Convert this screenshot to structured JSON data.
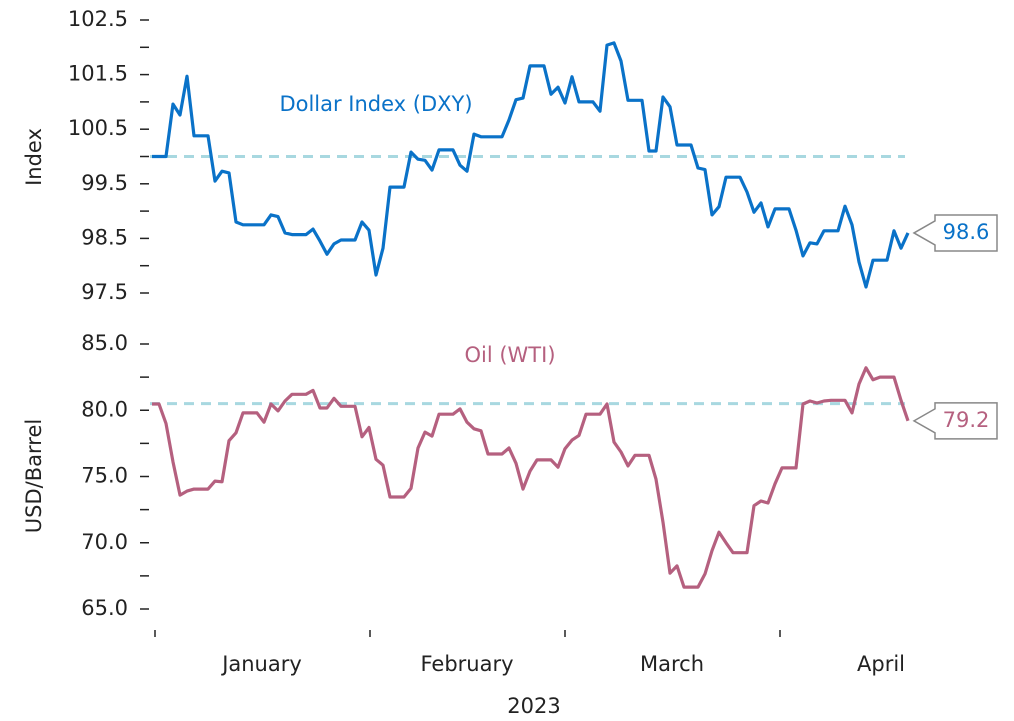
{
  "chart_data": [
    {
      "type": "line",
      "ylabel": "Index",
      "ylim": [
        97.5,
        102.5
      ],
      "yticks": [
        97.5,
        98.5,
        99.5,
        100.5,
        101.5,
        102.5
      ],
      "minor_yticks": [
        98.0,
        99.0,
        100.0,
        101.0,
        102.0
      ],
      "reference_line": 100.0,
      "end_label": "98.6",
      "series": [
        {
          "name": "Dollar Index (DXY)",
          "color": "#0a72c8",
          "values": [
            100.0,
            100.0,
            100.0,
            100.96,
            100.76,
            101.47,
            100.38,
            100.38,
            100.38,
            99.55,
            99.73,
            99.7,
            98.8,
            98.75,
            98.75,
            98.75,
            98.75,
            98.93,
            98.9,
            98.6,
            98.57,
            98.57,
            98.57,
            98.67,
            98.45,
            98.21,
            98.4,
            98.47,
            98.47,
            98.47,
            98.8,
            98.65,
            97.83,
            98.32,
            99.44,
            99.44,
            99.44,
            100.08,
            99.95,
            99.93,
            99.75,
            100.12,
            100.12,
            100.12,
            99.84,
            99.73,
            100.41,
            100.36,
            100.36,
            100.36,
            100.36,
            100.67,
            101.04,
            101.07,
            101.66,
            101.66,
            101.66,
            101.14,
            101.27,
            100.98,
            101.46,
            101.0,
            101.0,
            101.0,
            100.83,
            102.04,
            102.08,
            101.75,
            101.03,
            101.03,
            101.03,
            100.1,
            100.1,
            101.09,
            100.91,
            100.21,
            100.21,
            100.21,
            99.79,
            99.76,
            98.93,
            99.08,
            99.62,
            99.62,
            99.62,
            99.35,
            98.98,
            99.15,
            98.71,
            99.04,
            99.04,
            99.04,
            98.65,
            98.18,
            98.42,
            98.4,
            98.64,
            98.64,
            98.64,
            99.09,
            98.75,
            98.07,
            97.61,
            98.1,
            98.1,
            98.1,
            98.64,
            98.32,
            98.6
          ]
        }
      ]
    },
    {
      "type": "line",
      "ylabel": "USD/Barrel",
      "ylim": [
        65,
        85
      ],
      "yticks": [
        {
          "value": 65,
          "label": "65.0"
        },
        {
          "value": 70,
          "label": "70.0"
        },
        {
          "value": 75,
          "label": "75.0"
        },
        {
          "value": 80,
          "label": "80.0"
        },
        {
          "value": 85,
          "label": "85.0"
        }
      ],
      "minor_yticks": [
        67.5,
        72.5,
        77.5,
        82.5
      ],
      "reference_line": 80.5,
      "end_label": "79.2",
      "x_axis_labels": [
        "January",
        "February",
        "March",
        "April"
      ],
      "xlabel": "2023",
      "series": [
        {
          "name": "Oil (WTI)",
          "color": "#b5607f",
          "values": [
            80.47,
            80.47,
            79.0,
            76.1,
            73.6,
            73.9,
            74.05,
            74.05,
            74.05,
            74.65,
            74.6,
            77.7,
            78.3,
            79.8,
            79.8,
            79.8,
            79.1,
            80.47,
            79.95,
            80.7,
            81.2,
            81.2,
            81.2,
            81.5,
            80.17,
            80.17,
            80.9,
            80.3,
            80.3,
            80.3,
            78.0,
            78.7,
            76.3,
            75.85,
            73.45,
            73.45,
            73.45,
            74.1,
            77.15,
            78.35,
            78.05,
            79.7,
            79.7,
            79.7,
            80.1,
            79.1,
            78.6,
            78.45,
            76.7,
            76.7,
            76.7,
            77.15,
            76.0,
            74.05,
            75.4,
            76.25,
            76.25,
            76.25,
            75.7,
            77.1,
            77.75,
            78.1,
            79.7,
            79.7,
            79.7,
            80.47,
            77.6,
            76.85,
            75.8,
            76.6,
            76.6,
            76.6,
            74.8,
            71.55,
            67.7,
            68.25,
            66.65,
            66.65,
            66.65,
            67.65,
            69.4,
            70.8,
            70.0,
            69.25,
            69.25,
            69.25,
            72.8,
            73.15,
            73.0,
            74.45,
            75.65,
            75.65,
            75.65,
            80.47,
            80.7,
            80.55,
            80.7,
            80.75,
            80.75,
            80.75,
            79.8,
            81.98,
            83.2,
            82.3,
            82.5,
            82.5,
            82.5,
            80.75,
            79.2
          ]
        }
      ]
    }
  ]
}
